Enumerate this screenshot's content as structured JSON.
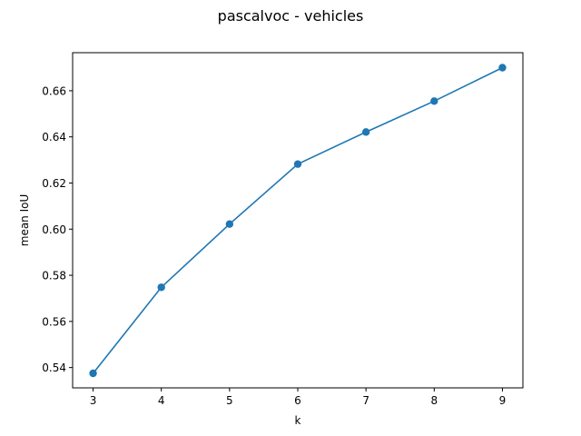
{
  "chart_data": {
    "type": "line",
    "title": "pascalvoc - vehicles",
    "xlabel": "k",
    "ylabel": "mean IoU",
    "x": [
      3,
      4,
      5,
      6,
      7,
      8,
      9
    ],
    "series": [
      {
        "values": [
          0.5375,
          0.5748,
          0.6022,
          0.6282,
          0.6421,
          0.6555,
          0.67
        ],
        "color": "#1f77b4",
        "marker": "circle"
      }
    ],
    "xlim": [
      2.7,
      9.3
    ],
    "ylim": [
      0.5312,
      0.6765
    ],
    "xticks": [
      "3",
      "4",
      "5",
      "6",
      "7",
      "8",
      "9"
    ],
    "yticks": [
      "0.54",
      "0.56",
      "0.58",
      "0.60",
      "0.62",
      "0.64",
      "0.66"
    ],
    "grid": false,
    "legend": "none"
  }
}
